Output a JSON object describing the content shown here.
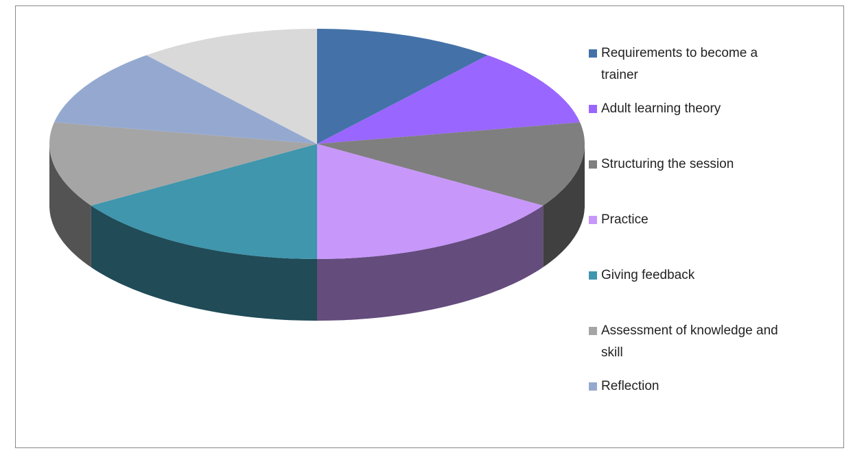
{
  "chart_data": {
    "type": "pie3d",
    "categories": [
      "Requirements to become a trainer",
      "Adult learning theory",
      "Structuring the session",
      "Practice",
      "Giving feedback",
      "Assessment of knowledge and skill",
      "Reflection",
      null
    ],
    "values": [
      11,
      11,
      12,
      16,
      16,
      12,
      11,
      11
    ],
    "colors": [
      "#4472a8",
      "#9966ff",
      "#7f7f7f",
      "#c797fa",
      "#3f96ad",
      "#a5a5a5",
      "#95a9d0",
      "#d9d9d9"
    ],
    "legend": "right"
  }
}
